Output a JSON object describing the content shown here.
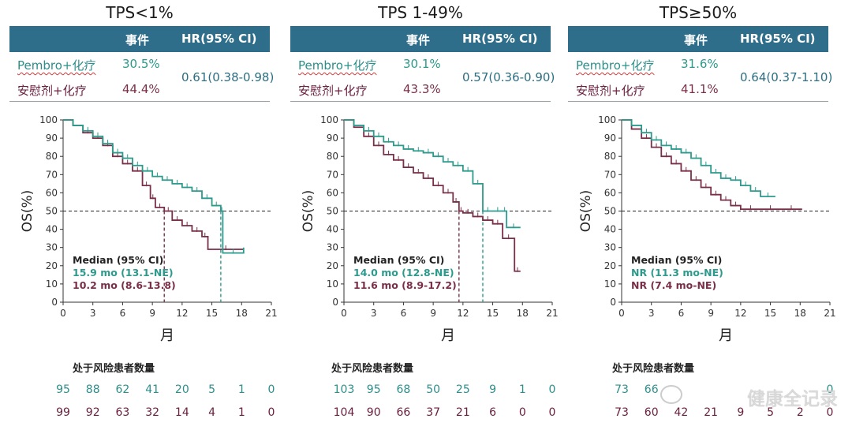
{
  "table_headers": {
    "events": "事件",
    "hr": "HR(95% CI)"
  },
  "arms": {
    "a": "Pembro+化疗",
    "b": "安慰剂+化疗"
  },
  "risk_header": "处于风险患者数量",
  "watermark": "健康全记录",
  "colors": {
    "teal": "#2c9a8c",
    "maroon": "#7a2f49",
    "header": "#2e6e8a"
  },
  "chart_data": [
    {
      "type": "line",
      "title": "TPS<1%",
      "xlabel": "月",
      "ylabel": "OS(%)",
      "xlim": [
        0,
        21
      ],
      "ylim": [
        0,
        100
      ],
      "xticks": [
        "0",
        "3",
        "6",
        "9",
        "12",
        "15",
        "18",
        "21"
      ],
      "yticks": [
        "0",
        "10",
        "20",
        "30",
        "40",
        "50",
        "60",
        "70",
        "80",
        "90",
        "100"
      ],
      "events": [
        "30.5%",
        "44.4%"
      ],
      "hr": "0.61(0.38-0.98)",
      "median_label": "Median (95% CI)",
      "median_a": "15.9 mo (13.1-NE)",
      "median_b": "10.2 mo (8.6-13.8)",
      "median_x": [
        15.9,
        10.2
      ],
      "series": [
        {
          "name": "Pembro+化疗",
          "x": [
            0,
            1,
            2,
            3,
            4,
            5,
            6,
            7,
            8,
            9,
            10,
            11,
            12,
            13,
            14,
            15,
            15.9,
            16.1,
            18.2
          ],
          "y": [
            100,
            97,
            94,
            91,
            87,
            82,
            79,
            75,
            72,
            69,
            67,
            65,
            63,
            61,
            57,
            53,
            50,
            27,
            30
          ]
        },
        {
          "name": "安慰剂+化疗",
          "x": [
            0,
            1,
            2,
            3,
            4,
            5,
            6,
            7,
            8,
            8.8,
            9.3,
            10.2,
            11,
            12,
            13,
            14,
            14.6,
            18.2
          ],
          "y": [
            100,
            97,
            93,
            90,
            86,
            80,
            76,
            72,
            64,
            57,
            52,
            50,
            45,
            42,
            39,
            36,
            29,
            29
          ]
        }
      ],
      "risk": [
        [
          95,
          88,
          62,
          41,
          20,
          5,
          1,
          0
        ],
        [
          99,
          92,
          63,
          32,
          14,
          4,
          1,
          0
        ]
      ]
    },
    {
      "type": "line",
      "title": "TPS 1-49%",
      "xlabel": "月",
      "ylabel": "OS(%)",
      "xlim": [
        0,
        21
      ],
      "ylim": [
        0,
        100
      ],
      "xticks": [
        "0",
        "3",
        "6",
        "9",
        "12",
        "15",
        "18",
        "21"
      ],
      "yticks": [
        "0",
        "10",
        "20",
        "30",
        "40",
        "50",
        "60",
        "70",
        "80",
        "90",
        "100"
      ],
      "events": [
        "30.1%",
        "43.3%"
      ],
      "hr": "0.57(0.36-0.90)",
      "median_label": "Median (95% CI)",
      "median_a": "14.0 mo (12.8-NE)",
      "median_b": "11.6 mo (8.9-17.2)",
      "median_x": [
        14.0,
        11.6
      ],
      "series": [
        {
          "name": "Pembro+化疗",
          "x": [
            0,
            1,
            2,
            3,
            4,
            5,
            6,
            7,
            8,
            9,
            10,
            11,
            12,
            13,
            14,
            15,
            16,
            16.4,
            17.8
          ],
          "y": [
            100,
            97,
            94,
            91,
            88,
            86,
            84,
            83,
            82,
            80,
            77,
            75,
            72,
            65,
            50,
            50,
            50,
            41,
            41
          ]
        },
        {
          "name": "安慰剂+化疗",
          "x": [
            0,
            1,
            2,
            3,
            4,
            5,
            6,
            7,
            8,
            9,
            10,
            11,
            11.6,
            12,
            13,
            14,
            15,
            16,
            17.2,
            17.8
          ],
          "y": [
            100,
            96,
            91,
            86,
            81,
            78,
            74,
            71,
            68,
            64,
            60,
            55,
            50,
            49,
            47,
            45,
            43,
            35,
            17,
            17
          ]
        }
      ],
      "risk": [
        [
          103,
          95,
          68,
          50,
          25,
          9,
          1,
          0
        ],
        [
          104,
          90,
          66,
          37,
          21,
          6,
          0,
          0
        ]
      ]
    },
    {
      "type": "line",
      "title": "TPS≥50%",
      "xlabel": "月",
      "ylabel": "OS(%)",
      "xlim": [
        0,
        21
      ],
      "ylim": [
        0,
        100
      ],
      "xticks": [
        "0",
        "3",
        "6",
        "9",
        "12",
        "15",
        "18",
        "21"
      ],
      "yticks": [
        "0",
        "10",
        "20",
        "30",
        "40",
        "50",
        "60",
        "70",
        "80",
        "90",
        "100"
      ],
      "events": [
        "31.6%",
        "41.1%"
      ],
      "hr": "0.64(0.37-1.10)",
      "median_label": "Median (95% CI)",
      "median_a": "NR (11.3 mo-NE)",
      "median_b": "NR (7.4 mo-NE)",
      "median_x": [],
      "series": [
        {
          "name": "Pembro+化疗",
          "x": [
            0,
            1,
            2,
            3,
            4,
            5,
            6,
            7,
            8,
            9,
            10,
            11,
            12,
            13,
            14,
            15.5
          ],
          "y": [
            100,
            97,
            93,
            89,
            86,
            84,
            82,
            79,
            75,
            71,
            68,
            67,
            64,
            61,
            58,
            58
          ]
        },
        {
          "name": "安慰剂+化疗",
          "x": [
            0,
            1,
            2,
            3,
            4,
            5,
            6,
            7,
            8,
            9,
            10,
            11,
            12,
            14,
            16,
            18.2
          ],
          "y": [
            100,
            95,
            90,
            85,
            80,
            76,
            72,
            67,
            63,
            59,
            56,
            53,
            51,
            51,
            51,
            51
          ]
        }
      ],
      "risk": [
        [
          73,
          66,
          "",
          null,
          null,
          null,
          null,
          0
        ],
        [
          73,
          60,
          42,
          21,
          9,
          5,
          2,
          0
        ]
      ]
    }
  ]
}
